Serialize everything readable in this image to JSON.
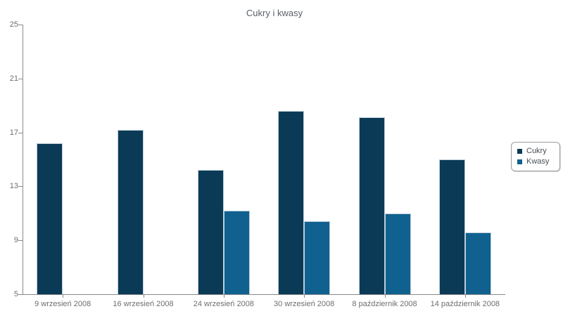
{
  "chart_data": {
    "type": "bar",
    "title": "Cukry i kwasy",
    "categories": [
      "9 wrzesień 2008",
      "16 wrzesień 2008",
      "24 wrzesień 2008",
      "30 wrzesień 2008",
      "8 październik 2008",
      "14 październik 2008"
    ],
    "series": [
      {
        "name": "Cukry",
        "color": "#0b3a57",
        "values": [
          16.2,
          17.2,
          14.2,
          18.6,
          18.1,
          15.0
        ]
      },
      {
        "name": "Kwasy",
        "color": "#10618f",
        "values": [
          null,
          null,
          11.2,
          10.4,
          11.0,
          9.6
        ]
      }
    ],
    "ylim": [
      5,
      25
    ],
    "yticks": [
      5,
      9,
      13,
      17,
      21,
      25
    ],
    "xlabel": "",
    "ylabel": "",
    "grid": false,
    "legend_position": "right",
    "axis_color": "#8a8a8a",
    "tick_label_color": "#6e6e6e",
    "title_color": "#5a6068",
    "bar_border_color": "#bccfdb",
    "background_color": "#ffffff"
  }
}
